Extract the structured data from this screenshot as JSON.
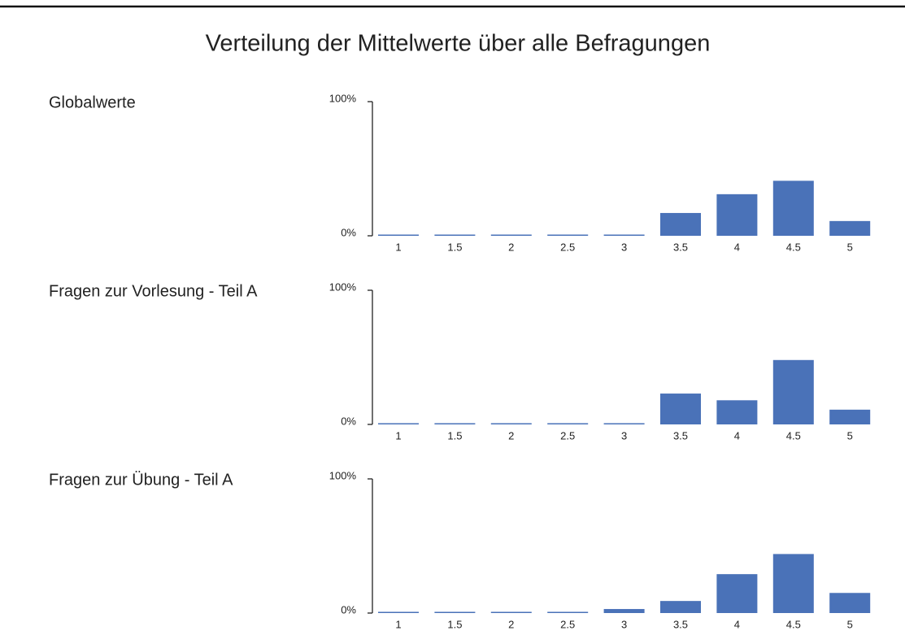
{
  "title": "Verteilung der Mittelwerte über alle Befragungen",
  "chart_data": [
    {
      "type": "bar",
      "title": "Globalwerte",
      "categories": [
        "1",
        "1.5",
        "2",
        "2.5",
        "3",
        "3.5",
        "4",
        "4.5",
        "5"
      ],
      "values": [
        0,
        0,
        0,
        0,
        0,
        17,
        31,
        41,
        11
      ],
      "color": "#4a72b8",
      "ylim": [
        0,
        100
      ],
      "yticks": [
        {
          "value": 0,
          "label": "0%"
        },
        {
          "value": 100,
          "label": "100%"
        }
      ]
    },
    {
      "type": "bar",
      "title": "Fragen zur Vorlesung - Teil A",
      "categories": [
        "1",
        "1.5",
        "2",
        "2.5",
        "3",
        "3.5",
        "4",
        "4.5",
        "5"
      ],
      "values": [
        0,
        0,
        0,
        0,
        0,
        23,
        18,
        48,
        11
      ],
      "color": "#4a72b8",
      "ylim": [
        0,
        100
      ],
      "yticks": [
        {
          "value": 0,
          "label": "0%"
        },
        {
          "value": 100,
          "label": "100%"
        }
      ]
    },
    {
      "type": "bar",
      "title": "Fragen zur Übung - Teil A",
      "categories": [
        "1",
        "1.5",
        "2",
        "2.5",
        "3",
        "3.5",
        "4",
        "4.5",
        "5"
      ],
      "values": [
        0,
        0,
        0,
        0,
        3,
        9,
        29,
        44,
        15
      ],
      "color": "#4a72b8",
      "ylim": [
        0,
        100
      ],
      "yticks": [
        {
          "value": 0,
          "label": "0%"
        },
        {
          "value": 100,
          "label": "100%"
        }
      ]
    }
  ]
}
